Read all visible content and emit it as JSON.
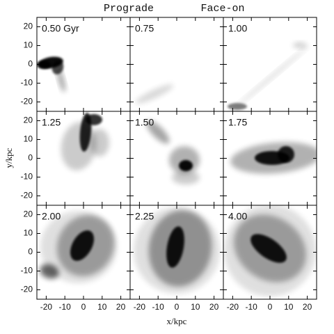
{
  "chart_data": {
    "type": "scatter",
    "title_left": "Prograde",
    "title_right": "Face-on",
    "xlabel": "x/kpc",
    "ylabel": "y/kpc",
    "xlim": [
      -25,
      25
    ],
    "ylim": [
      -25,
      25
    ],
    "xticks": [
      -20,
      -10,
      0,
      10,
      20
    ],
    "yticks": [
      -20,
      -10,
      0,
      10,
      20
    ],
    "panels": [
      "0.50 Gyr",
      "0.75",
      "1.00",
      "1.25",
      "1.50",
      "1.75",
      "2.00",
      "2.25",
      "4.00"
    ]
  }
}
